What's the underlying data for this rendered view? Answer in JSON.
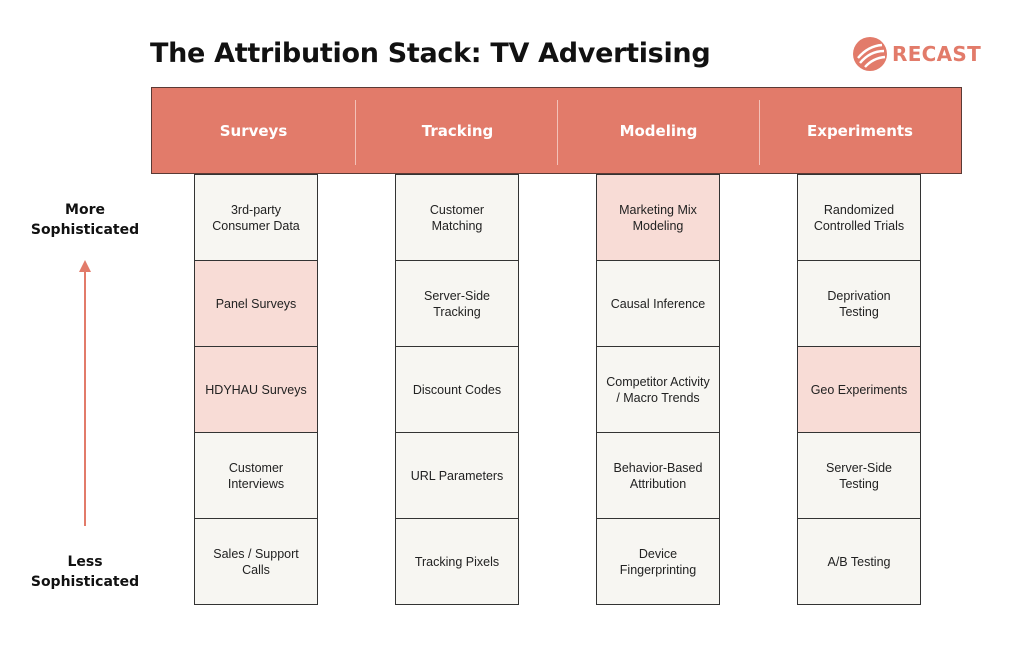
{
  "title": "The Attribution Stack: TV Advertising",
  "logo": {
    "text": "RECAST",
    "icon": "recast-logo-icon"
  },
  "accent_color": "#e27b6a",
  "highlight_color": "#f8dcd6",
  "axis": {
    "top_label": "More Sophisticated",
    "bottom_label": "Less Sophisticated",
    "arrow_icon": "arrow-up-icon"
  },
  "columns": [
    {
      "header": "Surveys",
      "cells": [
        {
          "label": "3rd-party Consumer Data",
          "highlighted": false
        },
        {
          "label": "Panel Surveys",
          "highlighted": true
        },
        {
          "label": "HDYHAU Surveys",
          "highlighted": true
        },
        {
          "label": "Customer Interviews",
          "highlighted": false
        },
        {
          "label": "Sales / Support Calls",
          "highlighted": false
        }
      ]
    },
    {
      "header": "Tracking",
      "cells": [
        {
          "label": "Customer Matching",
          "highlighted": false
        },
        {
          "label": "Server-Side Tracking",
          "highlighted": false
        },
        {
          "label": "Discount Codes",
          "highlighted": false
        },
        {
          "label": "URL Parameters",
          "highlighted": false
        },
        {
          "label": "Tracking Pixels",
          "highlighted": false
        }
      ]
    },
    {
      "header": "Modeling",
      "cells": [
        {
          "label": "Marketing Mix Modeling",
          "highlighted": true
        },
        {
          "label": "Causal Inference",
          "highlighted": false
        },
        {
          "label": "Competitor Activity / Macro Trends",
          "highlighted": false
        },
        {
          "label": "Behavior-Based Attribution",
          "highlighted": false
        },
        {
          "label": "Device Fingerprinting",
          "highlighted": false
        }
      ]
    },
    {
      "header": "Experiments",
      "cells": [
        {
          "label": "Randomized Controlled Trials",
          "highlighted": false
        },
        {
          "label": "Deprivation Testing",
          "highlighted": false
        },
        {
          "label": "Geo Experiments",
          "highlighted": true
        },
        {
          "label": "Server-Side Testing",
          "highlighted": false
        },
        {
          "label": "A/B Testing",
          "highlighted": false
        }
      ]
    }
  ]
}
